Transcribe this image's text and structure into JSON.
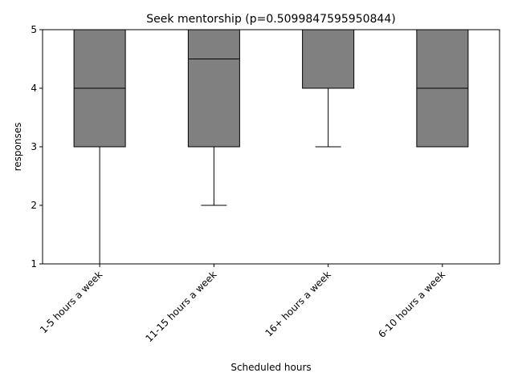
{
  "chart_data": {
    "type": "boxplot",
    "title": "Seek mentorship (p=0.5099847595950844)",
    "xlabel": "Scheduled hours",
    "ylabel": "responses",
    "ylim": [
      1,
      5
    ],
    "yticks": [
      1,
      2,
      3,
      4,
      5
    ],
    "categories": [
      "1-5 hours a week",
      "11-15 hours a week",
      "16+ hours a week",
      "6-10 hours a week"
    ],
    "boxes": [
      {
        "whisker_low": 1,
        "q1": 3,
        "median": 4,
        "q3": 5,
        "whisker_high": 5
      },
      {
        "whisker_low": 2,
        "q1": 3,
        "median": 4.5,
        "q3": 5,
        "whisker_high": 5
      },
      {
        "whisker_low": 3,
        "q1": 4,
        "median": 4,
        "q3": 5,
        "whisker_high": 5
      },
      {
        "whisker_low": 3,
        "q1": 3,
        "median": 4,
        "q3": 5,
        "whisker_high": 5
      }
    ],
    "box_color": "#808080",
    "line_color": "#000000",
    "grid": false,
    "legend": "none"
  }
}
